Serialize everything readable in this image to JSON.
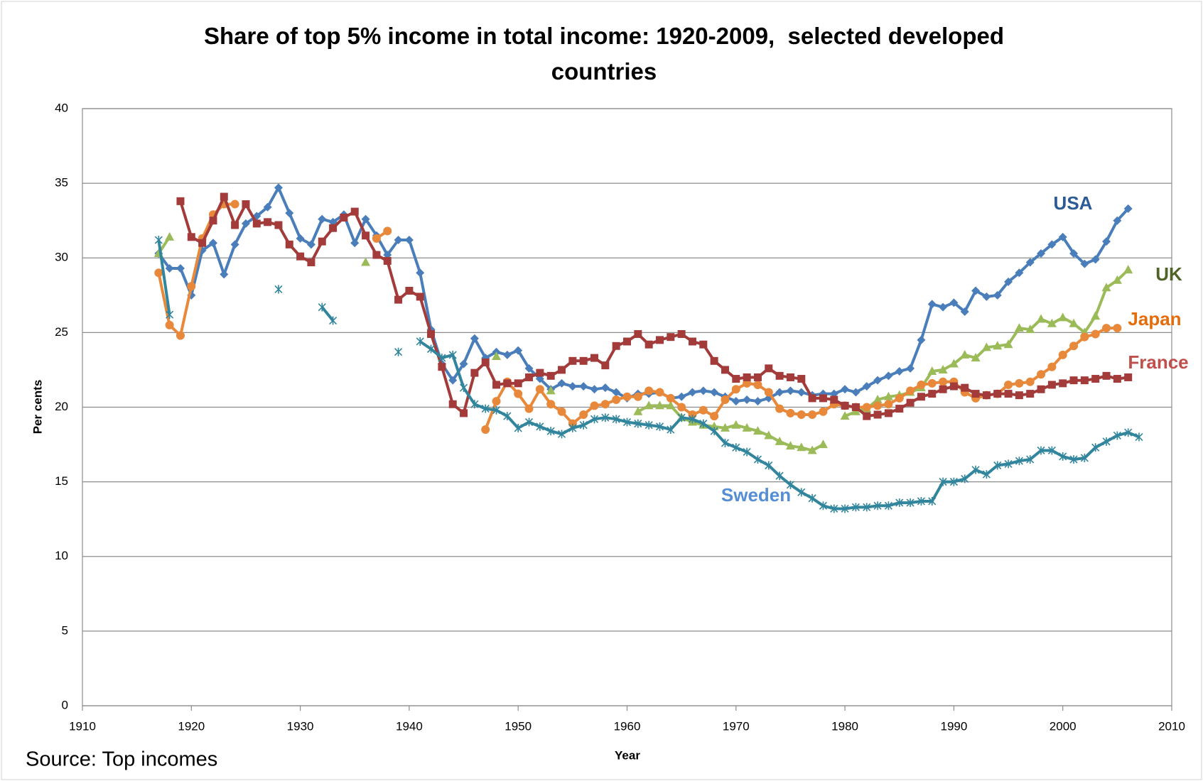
{
  "chart_data": {
    "type": "line",
    "title": "Share of top 5% income in total income: 1920-2009,  selected developed countries",
    "xlabel": "Year",
    "ylabel": "Per cents",
    "source": "Source: Top incomes",
    "xlim": [
      1910,
      2010
    ],
    "xticks": [
      1910,
      1920,
      1930,
      1940,
      1950,
      1960,
      1970,
      1980,
      1990,
      2000,
      2010
    ],
    "ylim": [
      0,
      40
    ],
    "yticks": [
      0,
      5,
      10,
      15,
      20,
      25,
      30,
      35,
      40
    ],
    "grid": true,
    "x": [
      1917,
      1918,
      1919,
      1920,
      1921,
      1922,
      1923,
      1924,
      1925,
      1926,
      1927,
      1928,
      1929,
      1930,
      1931,
      1932,
      1933,
      1934,
      1935,
      1936,
      1937,
      1938,
      1939,
      1940,
      1941,
      1942,
      1943,
      1944,
      1945,
      1946,
      1947,
      1948,
      1949,
      1950,
      1951,
      1952,
      1953,
      1954,
      1955,
      1956,
      1957,
      1958,
      1959,
      1960,
      1961,
      1962,
      1963,
      1964,
      1965,
      1966,
      1967,
      1968,
      1969,
      1970,
      1971,
      1972,
      1973,
      1974,
      1975,
      1976,
      1977,
      1978,
      1979,
      1980,
      1981,
      1982,
      1983,
      1984,
      1985,
      1986,
      1987,
      1988,
      1989,
      1990,
      1991,
      1992,
      1993,
      1994,
      1995,
      1996,
      1997,
      1998,
      1999,
      2000,
      2001,
      2002,
      2003,
      2004,
      2005,
      2006,
      2007
    ],
    "series": [
      {
        "name": "USA",
        "color": "#4a7ebb",
        "label_color": "#2c5a94",
        "marker": "diamond",
        "values": [
          30.3,
          29.3,
          29.3,
          27.5,
          30.5,
          31.0,
          28.9,
          30.9,
          32.3,
          32.8,
          33.4,
          34.7,
          33.0,
          31.3,
          30.9,
          32.6,
          32.4,
          32.9,
          31.0,
          32.6,
          31.5,
          30.2,
          31.2,
          31.2,
          29.0,
          25.2,
          22.9,
          21.8,
          22.9,
          24.6,
          23.3,
          23.7,
          23.5,
          23.8,
          22.6,
          21.9,
          21.2,
          21.6,
          21.4,
          21.4,
          21.2,
          21.3,
          21.0,
          20.6,
          20.9,
          20.9,
          21.0,
          20.6,
          20.7,
          21.0,
          21.1,
          21.0,
          20.7,
          20.4,
          20.5,
          20.4,
          20.6,
          21.0,
          21.1,
          21.0,
          20.8,
          20.9,
          20.9,
          21.2,
          21.0,
          21.4,
          21.8,
          22.1,
          22.4,
          22.6,
          24.5,
          26.9,
          26.7,
          27.0,
          26.4,
          27.8,
          27.4,
          27.5,
          28.4,
          29.0,
          29.7,
          30.3,
          30.9,
          31.4,
          30.3,
          29.6,
          29.9,
          31.1,
          32.5,
          33.3,
          null
        ]
      },
      {
        "name": "UK",
        "color": "#9bbb59",
        "label_color": "#4f6228",
        "marker": "triangle",
        "values": [
          30.3,
          31.4,
          null,
          null,
          null,
          null,
          null,
          null,
          null,
          null,
          null,
          null,
          null,
          null,
          null,
          null,
          null,
          null,
          null,
          29.7,
          null,
          null,
          null,
          null,
          null,
          null,
          null,
          null,
          null,
          null,
          null,
          23.4,
          null,
          null,
          null,
          null,
          21.1,
          null,
          null,
          null,
          null,
          null,
          null,
          null,
          19.7,
          20.1,
          20.1,
          20.1,
          19.3,
          19.0,
          18.8,
          18.7,
          18.6,
          18.8,
          18.6,
          18.4,
          18.1,
          17.7,
          17.4,
          17.3,
          17.1,
          17.5,
          null,
          19.4,
          19.7,
          19.9,
          20.5,
          20.7,
          20.8,
          21.0,
          21.3,
          22.4,
          22.5,
          22.9,
          23.5,
          23.3,
          24.0,
          24.1,
          24.2,
          25.3,
          25.2,
          25.9,
          25.6,
          26.0,
          25.6,
          25.0,
          26.1,
          28.0,
          28.5,
          29.2,
          null
        ]
      },
      {
        "name": "Japan",
        "color": "#e8883a",
        "label_color": "#e46c0a",
        "marker": "circle",
        "values": [
          29.0,
          25.5,
          24.8,
          28.1,
          31.3,
          32.9,
          33.6,
          33.6,
          null,
          null,
          null,
          null,
          null,
          null,
          null,
          null,
          null,
          null,
          null,
          null,
          31.3,
          31.8,
          null,
          null,
          null,
          null,
          null,
          null,
          null,
          null,
          18.5,
          20.4,
          21.7,
          20.9,
          19.9,
          21.2,
          20.2,
          19.7,
          18.9,
          19.5,
          20.1,
          20.2,
          20.5,
          20.7,
          20.7,
          21.1,
          21.0,
          20.6,
          20.0,
          19.5,
          19.8,
          19.4,
          20.5,
          21.2,
          21.6,
          21.5,
          21.0,
          19.9,
          19.6,
          19.5,
          19.5,
          19.7,
          20.2,
          20.1,
          20.0,
          20.0,
          20.1,
          20.2,
          20.6,
          21.1,
          21.5,
          21.6,
          21.7,
          21.7,
          21.0,
          20.6,
          20.8,
          20.9,
          21.5,
          21.6,
          21.7,
          22.2,
          22.7,
          23.5,
          24.1,
          24.7,
          24.9,
          25.3,
          25.3,
          null,
          null
        ]
      },
      {
        "name": "France",
        "color": "#a33b3a",
        "label_color": "#c0504d",
        "marker": "square",
        "values": [
          null,
          null,
          33.8,
          31.4,
          31.0,
          32.5,
          34.1,
          32.2,
          33.6,
          32.3,
          32.4,
          32.2,
          30.9,
          30.1,
          29.7,
          31.1,
          32.0,
          32.7,
          33.1,
          31.5,
          30.2,
          29.8,
          27.2,
          27.8,
          27.4,
          24.9,
          22.7,
          20.2,
          19.6,
          22.3,
          23.0,
          21.5,
          21.6,
          21.6,
          22.0,
          22.3,
          22.1,
          22.5,
          23.1,
          23.1,
          23.3,
          22.8,
          24.1,
          24.4,
          24.9,
          24.2,
          24.5,
          24.7,
          24.9,
          24.4,
          24.2,
          23.1,
          22.5,
          21.9,
          22.0,
          22.0,
          22.6,
          22.1,
          22.0,
          21.9,
          20.6,
          20.6,
          20.5,
          20.1,
          20.0,
          19.4,
          19.5,
          19.6,
          19.9,
          20.3,
          20.7,
          20.9,
          21.2,
          21.4,
          21.3,
          20.9,
          20.8,
          20.9,
          20.9,
          20.8,
          20.9,
          21.2,
          21.5,
          21.6,
          21.8,
          21.8,
          21.9,
          22.1,
          21.9,
          22.0,
          null
        ]
      },
      {
        "name": "Sweden",
        "color": "#31859c",
        "label_color": "#558ed5",
        "marker": "asterisk",
        "values": [
          31.2,
          26.2,
          null,
          null,
          null,
          null,
          null,
          null,
          null,
          null,
          null,
          27.9,
          null,
          null,
          null,
          26.7,
          25.8,
          null,
          null,
          null,
          null,
          null,
          23.7,
          null,
          24.4,
          23.9,
          23.3,
          23.5,
          21.3,
          20.2,
          19.9,
          19.8,
          19.4,
          18.6,
          19.0,
          18.7,
          18.4,
          18.2,
          18.6,
          18.8,
          19.2,
          19.3,
          19.2,
          19.0,
          18.9,
          18.8,
          18.7,
          18.5,
          19.3,
          19.2,
          18.9,
          18.4,
          17.6,
          17.3,
          17.0,
          16.5,
          16.1,
          15.4,
          14.8,
          14.3,
          13.9,
          13.4,
          13.2,
          13.2,
          13.3,
          13.3,
          13.4,
          13.4,
          13.6,
          13.6,
          13.7,
          13.7,
          15.0,
          15.0,
          15.2,
          15.8,
          15.5,
          16.1,
          16.2,
          16.4,
          16.5,
          17.1,
          17.1,
          16.7,
          16.5,
          16.6,
          17.3,
          17.7,
          18.1,
          18.3,
          18.0
        ]
      }
    ]
  }
}
